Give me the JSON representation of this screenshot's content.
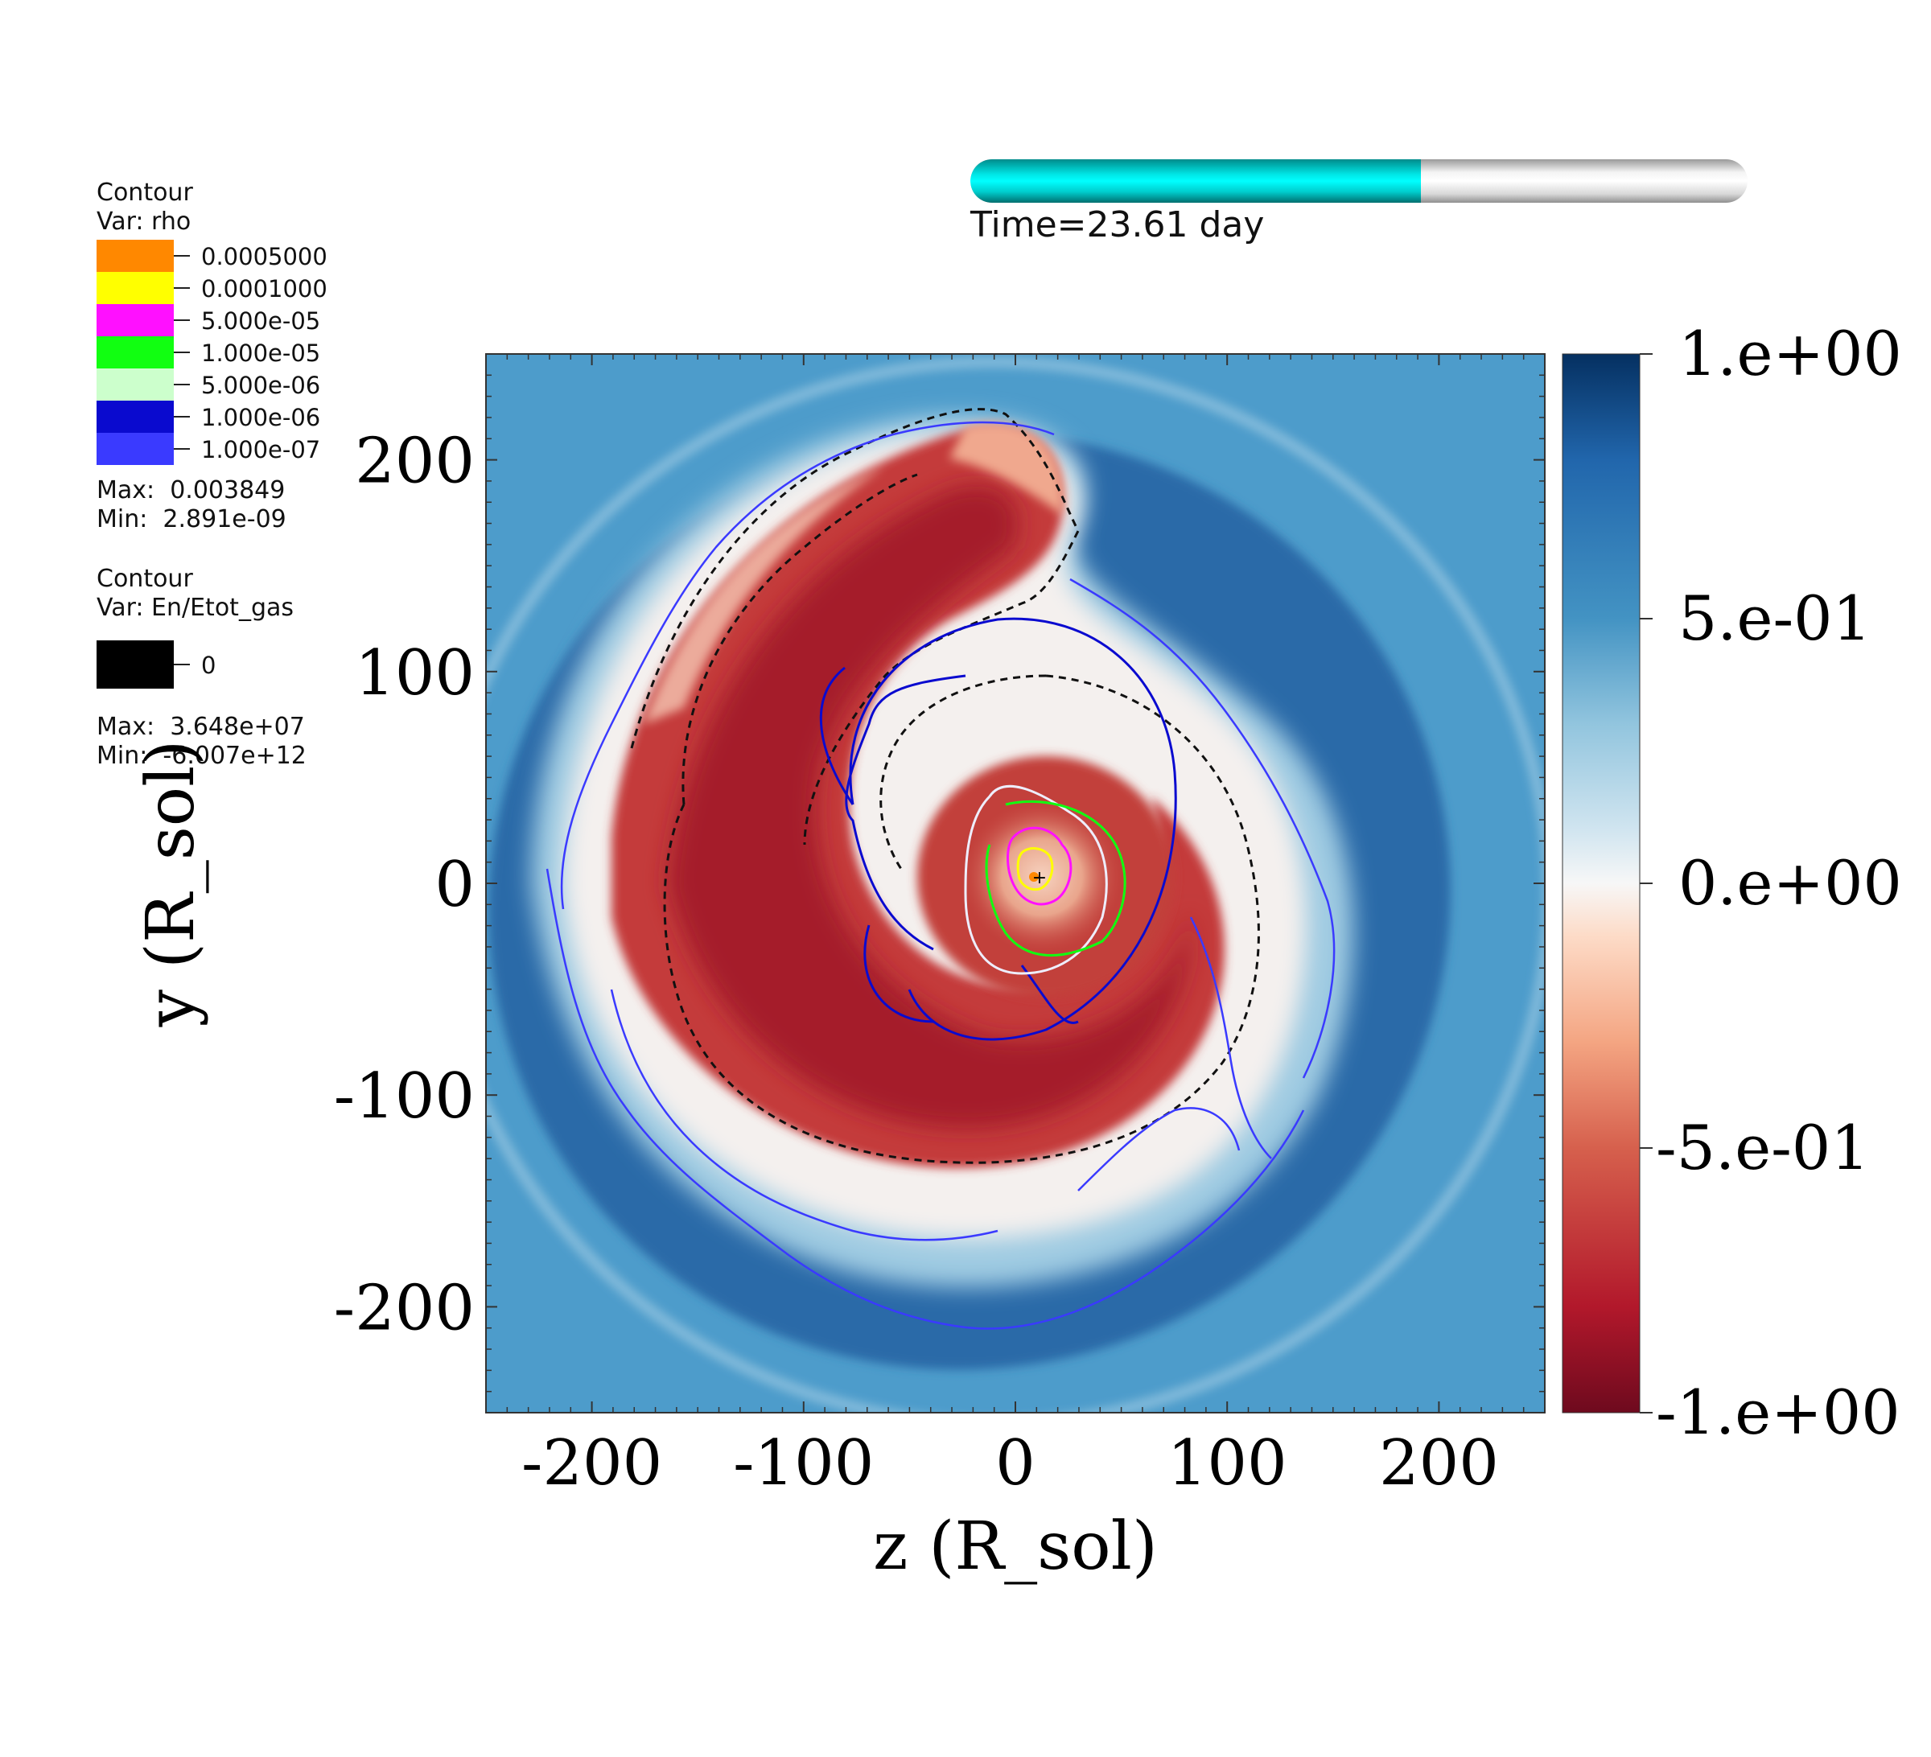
{
  "time": {
    "label": "Time=23.61 day",
    "progress": 0.58
  },
  "legend_rho": {
    "title_line1": "Contour",
    "title_line2": "Var: rho",
    "levels": [
      {
        "value": "0.0005000",
        "color": "#ff8800"
      },
      {
        "value": "0.0001000",
        "color": "#ffff00"
      },
      {
        "value": "5.000e-05",
        "color": "#ff10ff"
      },
      {
        "value": "1.000e-05",
        "color": "#11ff11"
      },
      {
        "value": "5.000e-06",
        "color": "#ccffcc"
      },
      {
        "value": "1.000e-06",
        "color": "#0a0acf"
      },
      {
        "value": "1.000e-07",
        "color": "#3a3aff"
      }
    ],
    "max": "Max:  0.003849",
    "min": "Min:  2.891e-09"
  },
  "legend_energy": {
    "title_line1": "Contour",
    "title_line2": "Var: En/Etot_gas",
    "levels": [
      {
        "value": "0",
        "color": "#000000"
      }
    ],
    "max": "Max:  3.648e+07",
    "min": "Min:  -6.007e+12"
  },
  "chart_data": {
    "type": "heatmap",
    "xlabel": "z (R_sol)",
    "ylabel": "y (R_sol)",
    "xlim": [
      -250,
      250
    ],
    "ylim": [
      -250,
      250
    ],
    "x_ticks": [
      -200,
      -100,
      0,
      100,
      200
    ],
    "y_ticks": [
      200,
      100,
      0,
      -100,
      -200
    ],
    "x_tick_labels": [
      "-200",
      "-100",
      "0",
      "100",
      "200"
    ],
    "y_tick_labels": [
      "200",
      "100",
      "0",
      "-100",
      "-200"
    ],
    "colorbar": {
      "range": [
        -1,
        1
      ],
      "ticks": [
        1,
        0.5,
        0,
        -0.5,
        -1
      ],
      "tick_labels": [
        "1.e+00",
        "5.e-01",
        "0.e+00",
        "-5.e-01",
        "-1.e+00"
      ],
      "colormap": "blue-white-red (diverging)"
    },
    "field_color_stops": [
      "#6e0a1e",
      "#b2182b",
      "#d6604d",
      "#f4a582",
      "#fddbc7",
      "#f7f7f7",
      "#d1e5f0",
      "#92c5de",
      "#4393c3",
      "#2166ac",
      "#053061"
    ],
    "background_color": "#4d9ccb",
    "markers": [
      {
        "label": "",
        "z": 12,
        "y": 2
      }
    ]
  }
}
